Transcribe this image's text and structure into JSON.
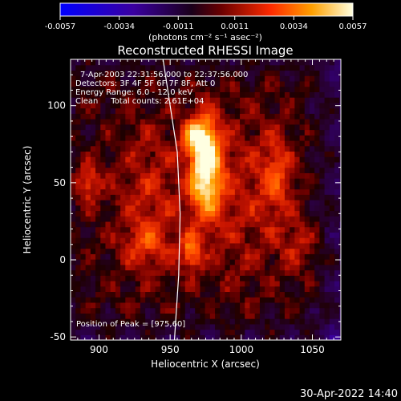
{
  "chart_data": {
    "type": "heatmap",
    "title": "Reconstructed RHESSI Image",
    "xlabel": "Heliocentric X (arcsec)",
    "ylabel": "Heliocentric Y (arcsec)",
    "xlim": [
      880,
      1070
    ],
    "ylim": [
      -52,
      130
    ],
    "x_ticks": [
      900,
      950,
      1000,
      1050
    ],
    "y_ticks": [
      0,
      50,
      100
    ],
    "colorbar": {
      "ticks": [
        "-0.0057",
        "-0.0034",
        "-0.0011",
        "0.0011",
        "0.0034",
        "0.0057"
      ],
      "range": [
        -0.0057,
        0.0057
      ],
      "units": "(photons cm⁻² s⁻¹ asec⁻²)"
    },
    "info_lines": [
      "7-Apr-2003 22:31:56.000 to 22:37:56.000",
      "Detectors: 3F 4F 5F 6F 7F 8F, Att 0",
      "Energy Range: 6.0 - 12.0 keV",
      "Clean     Total counts: 2.61E+04"
    ],
    "peak_label": "Position of Peak = [975,60]",
    "peak": {
      "x": 975,
      "y": 60,
      "value": 0.0057
    },
    "sources": [
      {
        "x": 975,
        "y": 60,
        "sx": 8,
        "sy": 22,
        "amp": 0.0057
      },
      {
        "x": 968,
        "y": 80,
        "sx": 7,
        "sy": 8,
        "amp": 0.0032
      },
      {
        "x": 965,
        "y": 5,
        "sx": 5,
        "sy": 8,
        "amp": 0.0032
      },
      {
        "x": 892,
        "y": 50,
        "sx": 6,
        "sy": 9,
        "amp": 0.0026
      },
      {
        "x": 1025,
        "y": 55,
        "sx": 8,
        "sy": 18,
        "amp": 0.0022
      },
      {
        "x": 935,
        "y": 40,
        "sx": 18,
        "sy": 35,
        "amp": 0.0016
      },
      {
        "x": 1000,
        "y": 40,
        "sx": 20,
        "sy": 40,
        "amp": 0.0014
      },
      {
        "x": 935,
        "y": 10,
        "sx": 12,
        "sy": 10,
        "amp": 0.0015
      },
      {
        "x": 1040,
        "y": 10,
        "sx": 10,
        "sy": 12,
        "amp": 0.0014
      }
    ],
    "limb_curve": [
      {
        "x": 945,
        "y": 130
      },
      {
        "x": 955,
        "y": 70
      },
      {
        "x": 957,
        "y": 30
      },
      {
        "x": 956,
        "y": -10
      },
      {
        "x": 953,
        "y": -52
      }
    ]
  },
  "timestamp": "30-Apr-2022 14:40"
}
